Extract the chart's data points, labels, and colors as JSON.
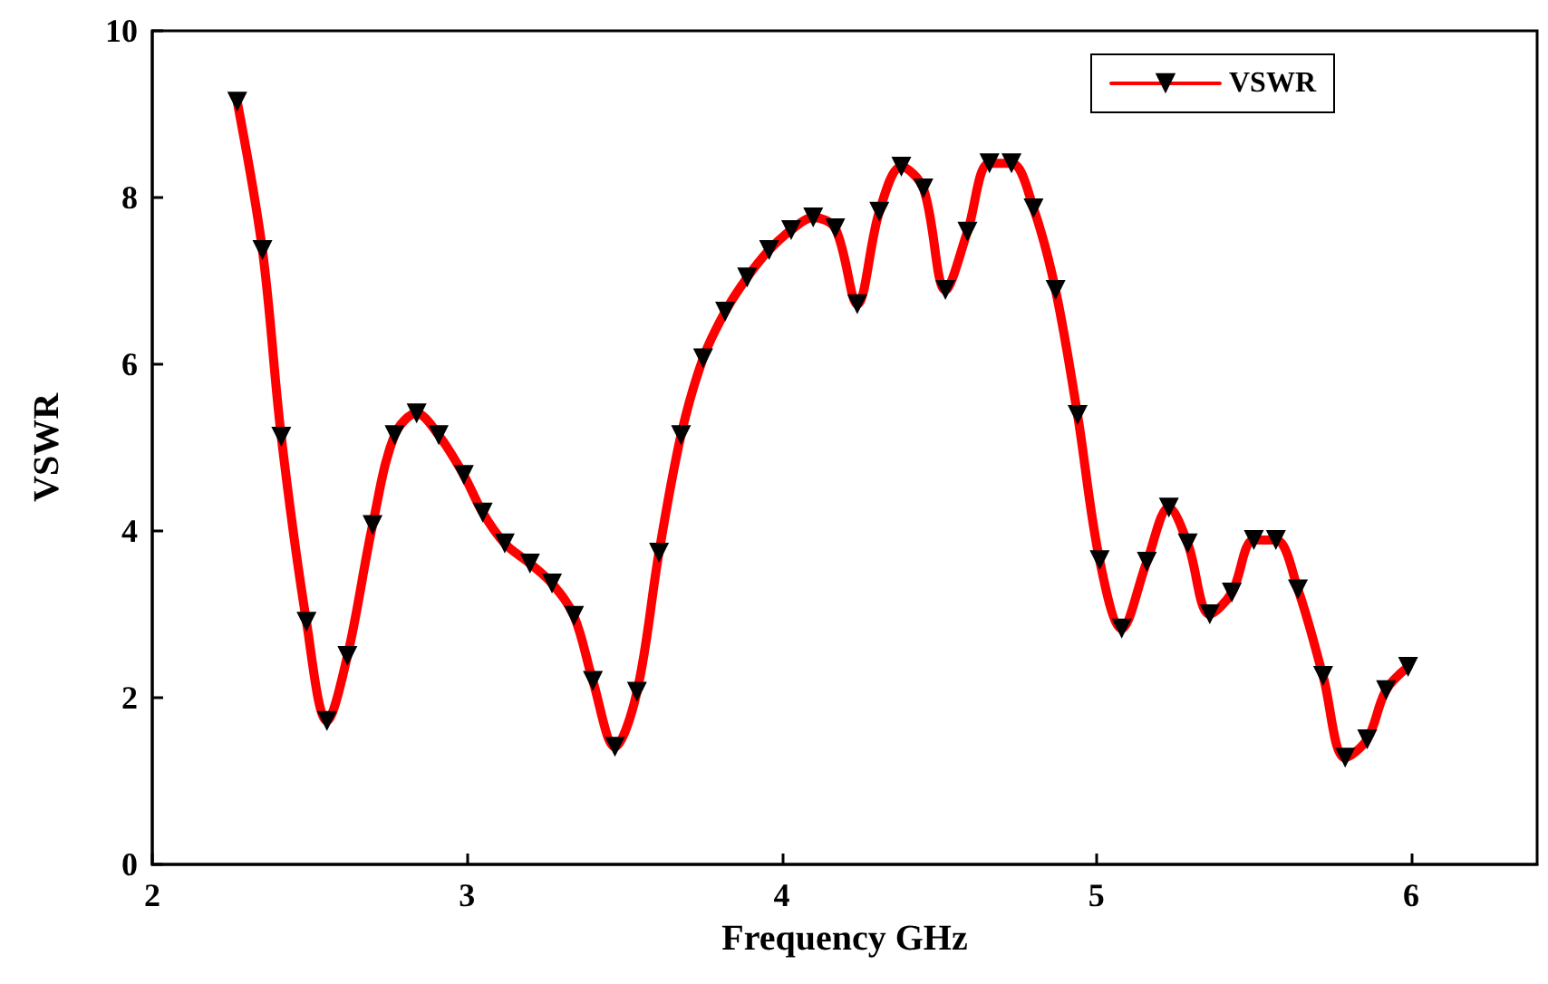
{
  "chart_data": {
    "type": "line",
    "xlabel": "Frequency GHz",
    "ylabel": "VSWR",
    "xlim": [
      2,
      6.4
    ],
    "xticks": [
      2,
      3,
      4,
      5,
      6
    ],
    "ylim": [
      0,
      10
    ],
    "yticks": [
      0,
      2,
      4,
      6,
      8,
      10
    ],
    "grid": false,
    "legend": "top right",
    "marker": "triangle",
    "line_style": "solid",
    "series": [
      {
        "name": "VSWR",
        "color": "#ff0000",
        "x": [
          2.27,
          2.35,
          2.41,
          2.49,
          2.555,
          2.62,
          2.7,
          2.77,
          2.84,
          2.91,
          2.99,
          3.05,
          3.12,
          3.2,
          3.27,
          3.34,
          3.4,
          3.47,
          3.54,
          3.61,
          3.68,
          3.75,
          3.82,
          3.89,
          3.96,
          4.03,
          4.1,
          4.17,
          4.24,
          4.31,
          4.38,
          4.45,
          4.52,
          4.59,
          4.66,
          4.73,
          4.8,
          4.87,
          4.94,
          5.01,
          5.08,
          5.16,
          5.23,
          5.29,
          5.36,
          5.43,
          5.5,
          5.57,
          5.64,
          5.72,
          5.79,
          5.86,
          5.92,
          5.99
        ],
        "values": [
          9.15,
          7.37,
          5.13,
          2.91,
          1.72,
          2.5,
          4.07,
          5.15,
          5.41,
          5.15,
          4.67,
          4.22,
          3.85,
          3.61,
          3.37,
          2.98,
          2.2,
          1.41,
          2.07,
          3.74,
          5.15,
          6.07,
          6.63,
          7.04,
          7.37,
          7.61,
          7.76,
          7.63,
          6.72,
          7.83,
          8.37,
          8.11,
          6.89,
          7.59,
          8.41,
          8.41,
          7.87,
          6.89,
          5.39,
          3.65,
          2.83,
          3.63,
          4.28,
          3.85,
          3.0,
          3.26,
          3.89,
          3.89,
          3.3,
          2.26,
          1.28,
          1.5,
          2.09,
          2.37
        ]
      }
    ]
  }
}
